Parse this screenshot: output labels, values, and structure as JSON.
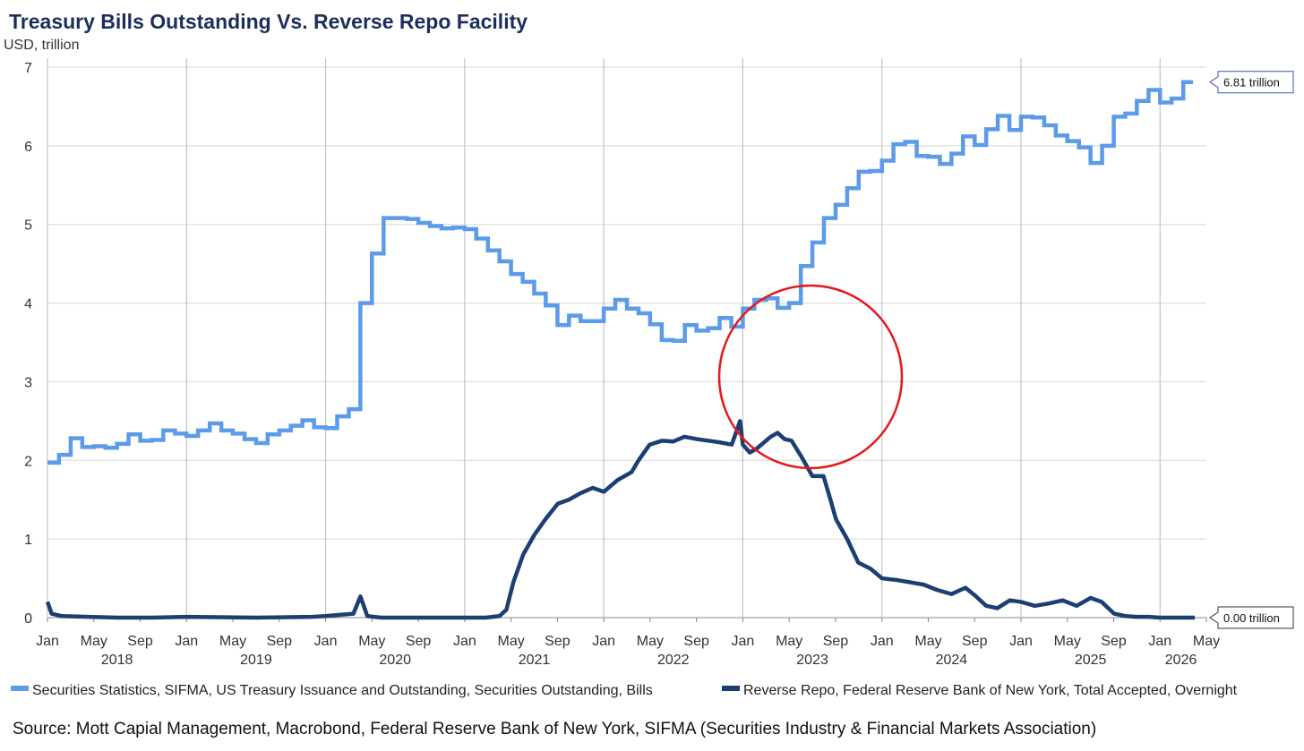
{
  "chart_data": {
    "type": "line",
    "title": "Treasury Bills Outstanding Vs. Reverse Repo Facility",
    "ylabel": "USD, trillion",
    "ylim": [
      0,
      7
    ],
    "yticks": [
      "0",
      "1",
      "2",
      "3",
      "4",
      "5",
      "6",
      "7"
    ],
    "xlim": [
      "2018-01",
      "2026-05"
    ],
    "month_ticks": [
      "Jan",
      "May",
      "Sep",
      "Jan",
      "May",
      "Sep",
      "Jan",
      "May",
      "Sep",
      "Jan",
      "May",
      "Sep",
      "Jan",
      "May",
      "Sep",
      "Jan",
      "May",
      "Sep",
      "Jan",
      "May",
      "Sep",
      "Jan",
      "May",
      "Sep",
      "Jan",
      "May"
    ],
    "year_labels": [
      "2018",
      "2019",
      "2020",
      "2021",
      "2022",
      "2023",
      "2024",
      "2025",
      "2026"
    ],
    "series": [
      {
        "name": "Securities Statistics, SIFMA, US Treasury Issuance and Outstanding, Securities Outstanding, Bills",
        "color": "#5b9bea",
        "style": "step",
        "x": [
          2018.0,
          2018.083,
          2018.167,
          2018.25,
          2018.333,
          2018.417,
          2018.5,
          2018.583,
          2018.667,
          2018.75,
          2018.833,
          2018.917,
          2019.0,
          2019.083,
          2019.167,
          2019.25,
          2019.333,
          2019.417,
          2019.5,
          2019.583,
          2019.667,
          2019.75,
          2019.833,
          2019.917,
          2020.0,
          2020.083,
          2020.167,
          2020.25,
          2020.333,
          2020.417,
          2020.5,
          2020.583,
          2020.667,
          2020.75,
          2020.833,
          2020.917,
          2021.0,
          2021.083,
          2021.167,
          2021.25,
          2021.333,
          2021.417,
          2021.5,
          2021.583,
          2021.667,
          2021.75,
          2021.833,
          2021.917,
          2022.0,
          2022.083,
          2022.167,
          2022.25,
          2022.333,
          2022.417,
          2022.5,
          2022.583,
          2022.667,
          2022.75,
          2022.833,
          2022.917,
          2023.0,
          2023.083,
          2023.167,
          2023.25,
          2023.333,
          2023.417,
          2023.5,
          2023.583,
          2023.667,
          2023.75,
          2023.833,
          2023.917,
          2024.0,
          2024.083,
          2024.167,
          2024.25,
          2024.333,
          2024.417,
          2024.5,
          2024.583,
          2024.667,
          2024.75,
          2024.833,
          2024.917,
          2025.0,
          2025.083,
          2025.167,
          2025.25,
          2025.333,
          2025.417,
          2025.5,
          2025.583,
          2025.667,
          2025.75,
          2025.833,
          2025.917,
          2026.0,
          2026.083,
          2026.167
        ],
        "values": [
          1.97,
          2.07,
          2.28,
          2.17,
          2.18,
          2.16,
          2.21,
          2.33,
          2.25,
          2.26,
          2.38,
          2.34,
          2.31,
          2.38,
          2.47,
          2.38,
          2.34,
          2.27,
          2.22,
          2.33,
          2.38,
          2.44,
          2.51,
          2.42,
          2.41,
          2.56,
          2.65,
          4.0,
          4.63,
          5.08,
          5.08,
          5.07,
          5.02,
          4.98,
          4.95,
          4.96,
          4.94,
          4.82,
          4.67,
          4.53,
          4.37,
          4.27,
          4.12,
          3.97,
          3.72,
          3.84,
          3.77,
          3.77,
          3.93,
          4.04,
          3.93,
          3.87,
          3.73,
          3.53,
          3.52,
          3.72,
          3.65,
          3.68,
          3.81,
          3.7,
          3.93,
          4.04,
          4.06,
          3.94,
          4.0,
          4.47,
          4.77,
          5.08,
          5.25,
          5.46,
          5.67,
          5.68,
          5.81,
          6.02,
          6.05,
          5.87,
          5.86,
          5.77,
          5.9,
          6.12,
          6.01,
          6.21,
          6.38,
          6.2,
          6.37,
          6.36,
          6.26,
          6.13,
          6.06,
          5.98,
          5.78,
          6.0,
          6.37,
          6.41,
          6.57,
          6.71,
          6.55,
          6.6,
          6.81
        ],
        "end_label": "6.81 trillion"
      },
      {
        "name": "Reverse Repo, Federal Reserve Bank of New York, Total Accepted, Overnight",
        "color": "#1c3f73",
        "style": "line",
        "x": [
          2018.0,
          2018.03,
          2018.1,
          2018.3,
          2018.5,
          2018.75,
          2019.0,
          2019.5,
          2019.9,
          2020.0,
          2020.2,
          2020.25,
          2020.3,
          2020.4,
          2020.6,
          2020.9,
          2021.0,
          2021.15,
          2021.25,
          2021.3,
          2021.35,
          2021.42,
          2021.5,
          2021.58,
          2021.67,
          2021.75,
          2021.83,
          2021.92,
          2022.0,
          2022.1,
          2022.2,
          2022.25,
          2022.33,
          2022.42,
          2022.5,
          2022.58,
          2022.67,
          2022.75,
          2022.83,
          2022.92,
          2022.98,
          2023.0,
          2023.05,
          2023.1,
          2023.2,
          2023.25,
          2023.3,
          2023.35,
          2023.42,
          2023.5,
          2023.58,
          2023.63,
          2023.67,
          2023.75,
          2023.83,
          2023.92,
          2024.0,
          2024.1,
          2024.2,
          2024.3,
          2024.4,
          2024.5,
          2024.6,
          2024.67,
          2024.75,
          2024.83,
          2024.92,
          2025.0,
          2025.1,
          2025.2,
          2025.3,
          2025.4,
          2025.5,
          2025.58,
          2025.67,
          2025.75,
          2025.83,
          2025.92,
          2026.0,
          2026.1,
          2026.17,
          2026.25
        ],
        "values": [
          0.2,
          0.05,
          0.02,
          0.01,
          0.0,
          0.0,
          0.01,
          0.0,
          0.01,
          0.02,
          0.05,
          0.27,
          0.02,
          0.0,
          0.0,
          0.0,
          0.0,
          0.0,
          0.02,
          0.1,
          0.45,
          0.8,
          1.05,
          1.25,
          1.45,
          1.5,
          1.58,
          1.65,
          1.6,
          1.75,
          1.85,
          2.0,
          2.2,
          2.25,
          2.24,
          2.3,
          2.27,
          2.25,
          2.23,
          2.2,
          2.5,
          2.2,
          2.1,
          2.15,
          2.3,
          2.35,
          2.27,
          2.25,
          2.05,
          1.8,
          1.8,
          1.5,
          1.25,
          1.0,
          0.7,
          0.62,
          0.5,
          0.48,
          0.45,
          0.42,
          0.35,
          0.3,
          0.38,
          0.28,
          0.15,
          0.12,
          0.22,
          0.2,
          0.15,
          0.18,
          0.22,
          0.15,
          0.25,
          0.2,
          0.05,
          0.02,
          0.01,
          0.01,
          0.0,
          0.0,
          0.0,
          0.0
        ],
        "end_label": "0.00 trillion"
      }
    ],
    "annotation": "red circle highlighting the 2023 crossover region",
    "source": "Source: Mott Capial Management, Macrobond, Federal Reserve Bank of New York, SIFMA (Securities Industry & Financial Markets Association)"
  }
}
